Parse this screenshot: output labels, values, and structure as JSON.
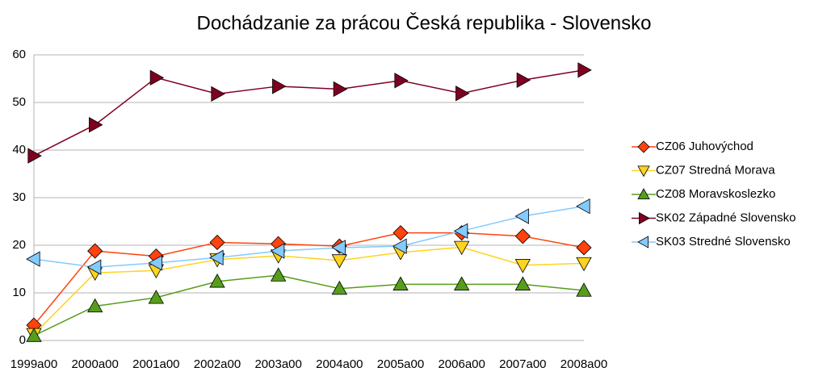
{
  "chart_data": {
    "type": "line",
    "title": "Dochádzanie za prácou Česká republika - Slovensko",
    "categories": [
      "1999a00",
      "2000a00",
      "2001a00",
      "2002a00",
      "2003a00",
      "2004a00",
      "2005a00",
      "2006a00",
      "2007a00",
      "2008a00"
    ],
    "series": [
      {
        "name": "CZ06 Juhovýchod",
        "color": "#ff420e",
        "marker": "diamond",
        "values": [
          3.2,
          18.8,
          17.7,
          20.6,
          20.3,
          19.8,
          22.6,
          22.6,
          21.9,
          19.5
        ]
      },
      {
        "name": "CZ07 Stredná Morava",
        "color": "#ffd320",
        "marker": "triangle-down",
        "values": [
          1.3,
          14.2,
          14.7,
          17.0,
          17.8,
          16.8,
          18.5,
          19.6,
          15.8,
          16.2
        ]
      },
      {
        "name": "CZ08 Moravskoslezko",
        "color": "#579d1c",
        "marker": "triangle-up",
        "values": [
          1.0,
          7.2,
          9.0,
          12.4,
          13.7,
          10.9,
          11.8,
          11.8,
          11.8,
          10.5
        ]
      },
      {
        "name": "SK02 Západné Slovensko",
        "color": "#7e0021",
        "marker": "triangle-right",
        "values": [
          38.8,
          45.3,
          55.2,
          51.8,
          53.4,
          52.8,
          54.6,
          51.9,
          54.7,
          56.8
        ]
      },
      {
        "name": "SK03 Stredné Slovensko",
        "color": "#83caff",
        "marker": "triangle-left",
        "values": [
          17.1,
          15.4,
          16.3,
          17.4,
          18.8,
          19.5,
          19.8,
          23.0,
          26.1,
          28.2
        ]
      }
    ],
    "ylim": [
      0,
      60
    ],
    "yticks": [
      0,
      10,
      20,
      30,
      40,
      50,
      60
    ],
    "grid": true,
    "legend": "right"
  }
}
